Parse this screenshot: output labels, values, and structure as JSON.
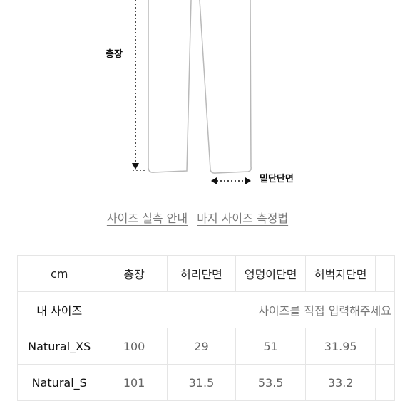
{
  "diagram": {
    "total_length_label": "총장",
    "hem_width_label": "밑단단면"
  },
  "links": {
    "size_guide": "사이즈 실측 안내",
    "measure_guide": "바지 사이즈 측정법"
  },
  "table": {
    "headers": [
      "cm",
      "총장",
      "허리단면",
      "엉덩이단면",
      "허벅지단면"
    ],
    "my_size": {
      "label": "내 사이즈",
      "placeholder": "사이즈를 직접 입력해주세요"
    },
    "rows": [
      {
        "name": "Natural_XS",
        "values": [
          "100",
          "29",
          "51",
          "31.95"
        ]
      },
      {
        "name": "Natural_S",
        "values": [
          "101",
          "31.5",
          "53.5",
          "33.2"
        ]
      }
    ]
  }
}
